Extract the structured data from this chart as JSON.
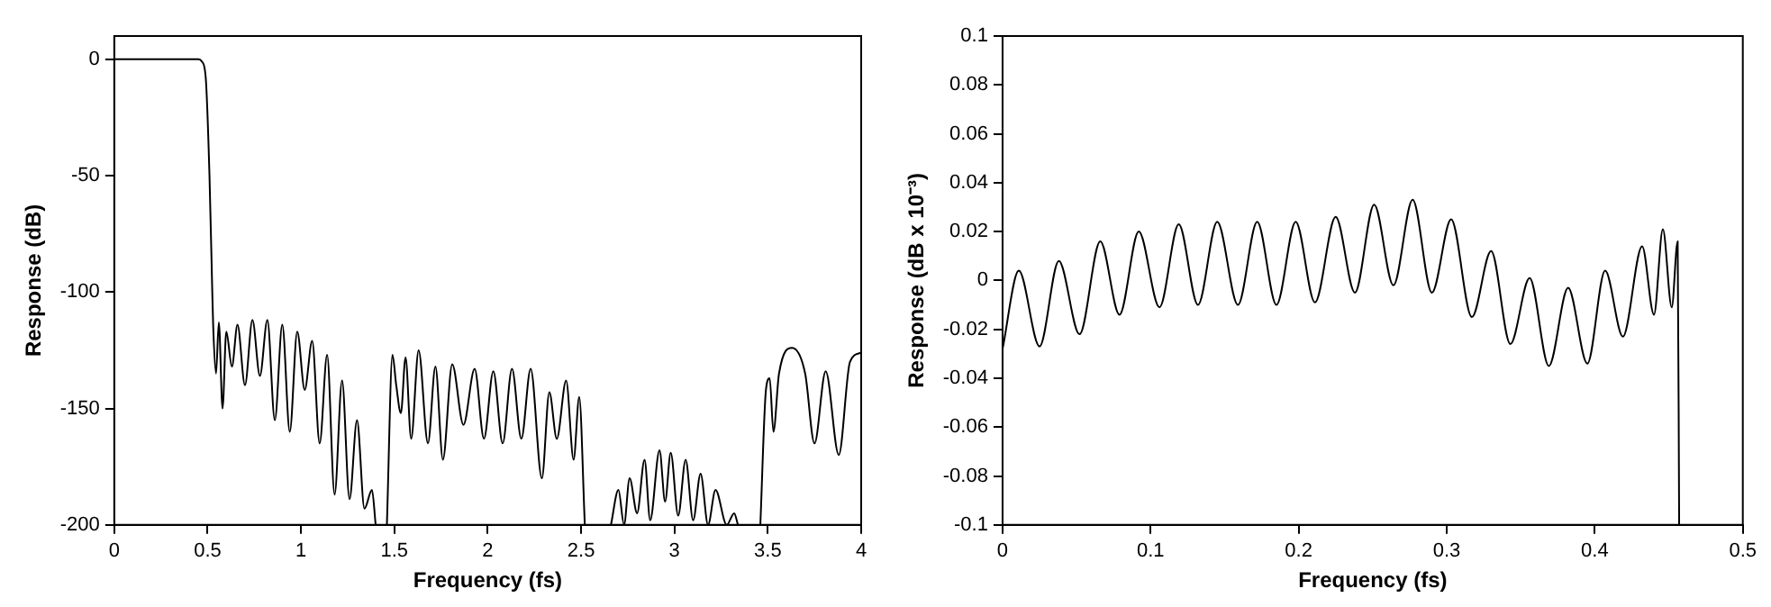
{
  "chart_data": [
    {
      "type": "line",
      "xlabel": "Frequency (fs)",
      "ylabel": "Response (dB)",
      "xlim": [
        0,
        4
      ],
      "xticks": [
        0,
        0.5,
        1,
        1.5,
        2,
        2.5,
        3,
        3.5,
        4
      ],
      "ylim": [
        -200,
        10
      ],
      "yticks": [
        -200,
        -150,
        -100,
        -50,
        0
      ],
      "marker": "none",
      "series": [
        {
          "color": "#000000",
          "x": [
            0,
            0.45,
            0.47,
            0.49,
            0.51,
            0.525,
            0.53,
            0.545,
            0.56,
            0.58,
            0.6,
            0.63,
            0.66,
            0.7,
            0.74,
            0.78,
            0.82,
            0.86,
            0.9,
            0.94,
            0.98,
            1.02,
            1.06,
            1.1,
            1.14,
            1.18,
            1.22,
            1.26,
            1.3,
            1.34,
            1.38,
            1.4,
            1.43,
            1.46,
            1.49,
            1.51,
            1.535,
            1.56,
            1.59,
            1.63,
            1.68,
            1.72,
            1.76,
            1.81,
            1.87,
            1.93,
            1.98,
            2.03,
            2.08,
            2.13,
            2.18,
            2.23,
            2.29,
            2.33,
            2.37,
            2.42,
            2.46,
            2.49,
            2.52,
            2.6,
            2.66,
            2.7,
            2.73,
            2.76,
            2.8,
            2.84,
            2.87,
            2.92,
            2.95,
            2.98,
            3.02,
            3.06,
            3.1,
            3.14,
            3.18,
            3.22,
            3.28,
            3.32,
            3.34,
            3.4,
            3.46,
            3.49,
            3.51,
            3.53,
            3.56,
            3.63,
            3.7,
            3.75,
            3.81,
            3.88,
            3.94,
            4
          ],
          "values": [
            0,
            0,
            -1,
            -8,
            -50,
            -100,
            -115,
            -135,
            -113,
            -150,
            -117,
            -132,
            -114,
            -140,
            -112,
            -136,
            -112,
            -155,
            -114,
            -160,
            -117,
            -142,
            -121,
            -165,
            -127,
            -187,
            -138,
            -189,
            -155,
            -193,
            -185,
            -200,
            null,
            -200,
            -127,
            -140,
            -152,
            -128,
            -163,
            -125,
            -165,
            -132,
            -172,
            -131,
            -157,
            -133,
            -163,
            -134,
            -165,
            -133,
            -163,
            -133,
            -180,
            -143,
            -163,
            -138,
            -172,
            -145,
            -200,
            null,
            -200,
            -185,
            -200,
            -180,
            -195,
            -172,
            -198,
            -168,
            -190,
            -169,
            -196,
            -172,
            -198,
            -178,
            -200,
            -185,
            -200,
            -195,
            -200,
            null,
            -200,
            -142,
            -137,
            -160,
            -135,
            -124,
            -135,
            -165,
            -134,
            -170,
            -130,
            -126
          ]
        }
      ]
    },
    {
      "type": "line",
      "xlabel": "Frequency (fs)",
      "ylabel": "Response (dB x 10⁻³)",
      "xlim": [
        0,
        0.5
      ],
      "xticks": [
        0,
        0.1,
        0.2,
        0.3,
        0.4,
        0.5
      ],
      "ylim": [
        -0.1,
        0.1
      ],
      "yticks": [
        -0.1,
        -0.08,
        -0.06,
        -0.04,
        -0.02,
        0,
        0.02,
        0.04,
        0.06,
        0.08,
        0.1
      ],
      "marker": "none",
      "series": [
        {
          "color": "#000000",
          "x": [
            0,
            0.011,
            0.025,
            0.038,
            0.052,
            0.066,
            0.079,
            0.092,
            0.106,
            0.119,
            0.132,
            0.145,
            0.159,
            0.172,
            0.185,
            0.198,
            0.211,
            0.225,
            0.238,
            0.251,
            0.264,
            0.277,
            0.29,
            0.303,
            0.317,
            0.33,
            0.343,
            0.356,
            0.369,
            0.382,
            0.395,
            0.407,
            0.419,
            0.432,
            0.44,
            0.446,
            0.452,
            0.456,
            0.457
          ],
          "values": [
            -0.028,
            0.004,
            -0.027,
            0.008,
            -0.022,
            0.016,
            -0.014,
            0.02,
            -0.011,
            0.023,
            -0.01,
            0.024,
            -0.01,
            0.024,
            -0.01,
            0.024,
            -0.009,
            0.026,
            -0.005,
            0.031,
            -0.002,
            0.033,
            -0.005,
            0.025,
            -0.015,
            0.012,
            -0.026,
            0.001,
            -0.035,
            -0.003,
            -0.034,
            0.004,
            -0.023,
            0.014,
            -0.014,
            0.021,
            -0.011,
            0.016,
            -0.1
          ]
        }
      ]
    }
  ]
}
